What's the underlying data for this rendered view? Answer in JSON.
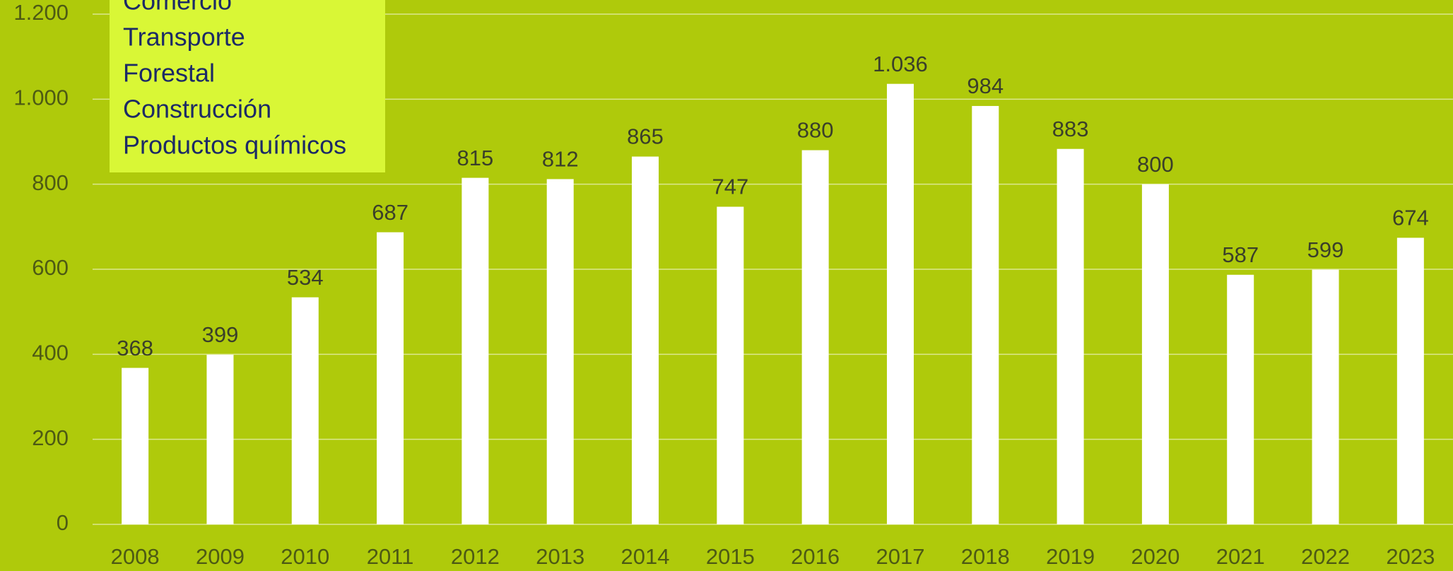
{
  "chart_data": {
    "type": "bar",
    "categories": [
      "2008",
      "2009",
      "2010",
      "2011",
      "2012",
      "2013",
      "2014",
      "2015",
      "2016",
      "2017",
      "2018",
      "2019",
      "2020",
      "2021",
      "2022",
      "2023"
    ],
    "values": [
      368,
      399,
      534,
      687,
      815,
      812,
      865,
      747,
      880,
      1036,
      984,
      883,
      800,
      587,
      599,
      674
    ],
    "value_labels": [
      "368",
      "399",
      "534",
      "687",
      "815",
      "812",
      "865",
      "747",
      "880",
      "1.036",
      "984",
      "883",
      "800",
      "587",
      "599",
      "674"
    ],
    "color": "#ffffff",
    "ylim": [
      0,
      1200
    ],
    "yticks": [
      0,
      200,
      400,
      600,
      800,
      {
        "value": 1000,
        "label": "1.000"
      },
      {
        "value": 1200,
        "label": "1.200"
      }
    ],
    "grid": true,
    "annotations": [
      "Comercio",
      "Transporte",
      "Forestal",
      "Construcción",
      "Productos químicos"
    ]
  }
}
